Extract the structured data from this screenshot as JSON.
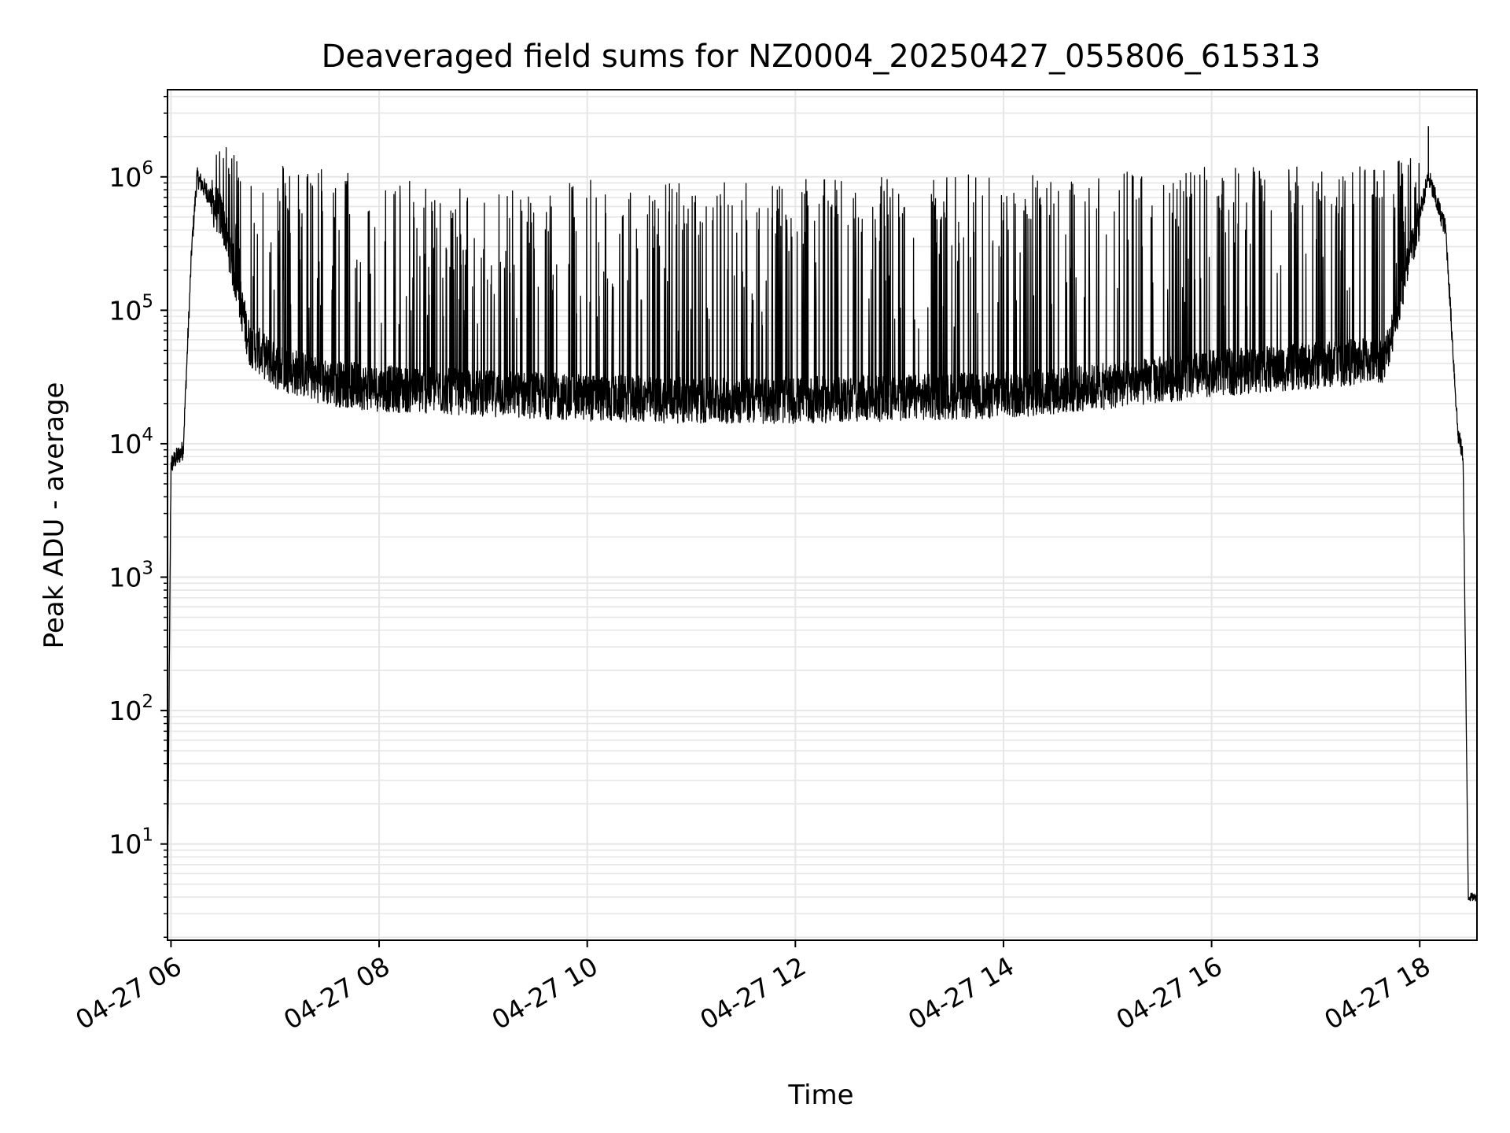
{
  "chart_data": {
    "type": "line",
    "title": "Deaveraged field sums for NZ0004_20250427_055806_615313",
    "xlabel": "Time",
    "ylabel": "Peak ADU - average",
    "yscale": "log",
    "grid": true,
    "line_color": "#000000",
    "grid_color": "#e6e6e6",
    "xlim": [
      "2025-04-27 05:58",
      "2025-04-27 18:33"
    ],
    "ylim": [
      1.9,
      4500000
    ],
    "x_ticks": [
      {
        "value": "2025-04-27 06:00",
        "label": "04-27 06"
      },
      {
        "value": "2025-04-27 08:00",
        "label": "04-27 08"
      },
      {
        "value": "2025-04-27 10:00",
        "label": "04-27 10"
      },
      {
        "value": "2025-04-27 12:00",
        "label": "04-27 12"
      },
      {
        "value": "2025-04-27 14:00",
        "label": "04-27 14"
      },
      {
        "value": "2025-04-27 16:00",
        "label": "04-27 16"
      },
      {
        "value": "2025-04-27 18:00",
        "label": "04-27 18"
      }
    ],
    "y_ticks": [
      {
        "value": 10,
        "label": "10",
        "exp": "1"
      },
      {
        "value": 100,
        "label": "10",
        "exp": "2"
      },
      {
        "value": 1000,
        "label": "10",
        "exp": "3"
      },
      {
        "value": 10000,
        "label": "10",
        "exp": "4"
      },
      {
        "value": 100000,
        "label": "10",
        "exp": "5"
      },
      {
        "value": 1000000,
        "label": "10",
        "exp": "6"
      }
    ],
    "series": [
      {
        "name": "",
        "envelope": [
          {
            "x": "2025-04-27 05:58",
            "baseline": 4,
            "peak": 4
          },
          {
            "x": "2025-04-27 06:00",
            "baseline": 7000,
            "peak": 12000
          },
          {
            "x": "2025-04-27 06:07",
            "baseline": 9000,
            "peak": 12000
          },
          {
            "x": "2025-04-27 06:12",
            "baseline": 300000,
            "peak": 500000
          },
          {
            "x": "2025-04-27 06:15",
            "baseline": 1000000,
            "peak": 1700000
          },
          {
            "x": "2025-04-27 06:30",
            "baseline": 500000,
            "peak": 1700000
          },
          {
            "x": "2025-04-27 06:45",
            "baseline": 60000,
            "peak": 1400000
          },
          {
            "x": "2025-04-27 07:00",
            "baseline": 40000,
            "peak": 1300000
          },
          {
            "x": "2025-04-27 07:30",
            "baseline": 30000,
            "peak": 1200000
          },
          {
            "x": "2025-04-27 08:00",
            "baseline": 27000,
            "peak": 1000000
          },
          {
            "x": "2025-04-27 09:00",
            "baseline": 25000,
            "peak": 800000
          },
          {
            "x": "2025-04-27 10:00",
            "baseline": 23000,
            "peak": 1000000
          },
          {
            "x": "2025-04-27 11:00",
            "baseline": 22000,
            "peak": 1000000
          },
          {
            "x": "2025-04-27 12:00",
            "baseline": 22000,
            "peak": 950000
          },
          {
            "x": "2025-04-27 13:00",
            "baseline": 23000,
            "peak": 1000000
          },
          {
            "x": "2025-04-27 14:00",
            "baseline": 24000,
            "peak": 1100000
          },
          {
            "x": "2025-04-27 15:00",
            "baseline": 28000,
            "peak": 1100000
          },
          {
            "x": "2025-04-27 16:00",
            "baseline": 35000,
            "peak": 1200000
          },
          {
            "x": "2025-04-27 17:00",
            "baseline": 40000,
            "peak": 1200000
          },
          {
            "x": "2025-04-27 17:40",
            "baseline": 45000,
            "peak": 1200000
          },
          {
            "x": "2025-04-27 17:50",
            "baseline": 150000,
            "peak": 1500000
          },
          {
            "x": "2025-04-27 18:05",
            "baseline": 1000000,
            "peak": 1200000
          },
          {
            "x": "2025-04-27 18:15",
            "baseline": 400000,
            "peak": 600000
          },
          {
            "x": "2025-04-27 18:22",
            "baseline": 12000,
            "peak": 15000
          },
          {
            "x": "2025-04-27 18:25",
            "baseline": 8000,
            "peak": 9000
          },
          {
            "x": "2025-04-27 18:28",
            "baseline": 4,
            "peak": 4
          },
          {
            "x": "2025-04-27 18:33",
            "baseline": 4,
            "peak": 4
          }
        ],
        "notable_points": [
          {
            "x": "2025-04-27 18:05",
            "y": 2400000
          }
        ]
      }
    ]
  }
}
